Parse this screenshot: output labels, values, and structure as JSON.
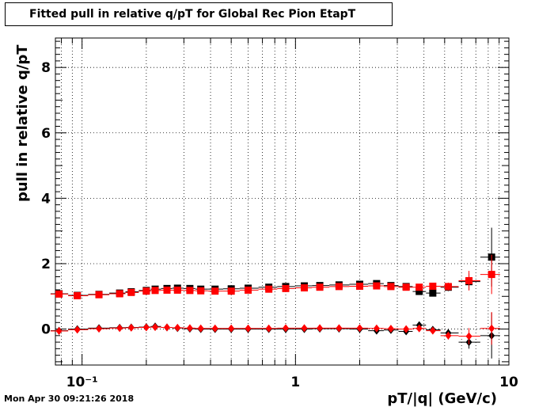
{
  "timestamp": "Mon Apr 30 09:21:26 2018",
  "chart_data": {
    "type": "scatter",
    "title": "Fitted pull in relative q/pT for Global Rec Pion EtapT",
    "xlabel": "pT/|q| (GeV/c)",
    "ylabel": "pull in relative q/pT",
    "xscale": "log",
    "xlim": [
      0.075,
      10
    ],
    "ylim": [
      -1.1,
      8.9
    ],
    "grid": true,
    "x_tick_labels": [
      "10⁻¹",
      "1",
      "10"
    ],
    "y_tick_labels": [
      "0",
      "2",
      "4",
      "6",
      "8"
    ],
    "colors": {
      "black_series": "#000000",
      "red_series": "#ff0000"
    },
    "series": [
      {
        "marker": "square",
        "color": "#000000",
        "points": [
          [
            0.078,
            1.08
          ],
          [
            0.095,
            1.03
          ],
          [
            0.12,
            1.06
          ],
          [
            0.15,
            1.1
          ],
          [
            0.17,
            1.14
          ],
          [
            0.2,
            1.18
          ],
          [
            0.22,
            1.22
          ],
          [
            0.25,
            1.24
          ],
          [
            0.28,
            1.25
          ],
          [
            0.32,
            1.24
          ],
          [
            0.36,
            1.22
          ],
          [
            0.42,
            1.22
          ],
          [
            0.5,
            1.23
          ],
          [
            0.6,
            1.25
          ],
          [
            0.75,
            1.28
          ],
          [
            0.9,
            1.3
          ],
          [
            1.1,
            1.32
          ],
          [
            1.3,
            1.33
          ],
          [
            1.6,
            1.35
          ],
          [
            2.0,
            1.37
          ],
          [
            2.4,
            1.39
          ],
          [
            2.8,
            1.33
          ],
          [
            3.3,
            1.3
          ],
          [
            3.8,
            1.15
          ],
          [
            4.4,
            1.1
          ],
          [
            5.2,
            1.28
          ],
          [
            6.5,
            1.45
          ],
          [
            8.3,
            2.2
          ]
        ],
        "errors": [
          0.02,
          0.02,
          0.02,
          0.02,
          0.02,
          0.02,
          0.02,
          0.02,
          0.02,
          0.02,
          0.02,
          0.02,
          0.02,
          0.02,
          0.02,
          0.02,
          0.02,
          0.02,
          0.02,
          0.02,
          0.03,
          0.03,
          0.05,
          0.06,
          0.08,
          0.12,
          0.25,
          0.9
        ]
      },
      {
        "marker": "diamond",
        "color": "#000000",
        "points": [
          [
            0.078,
            -0.05
          ],
          [
            0.095,
            0.0
          ],
          [
            0.12,
            0.03
          ],
          [
            0.15,
            0.04
          ],
          [
            0.17,
            0.05
          ],
          [
            0.2,
            0.06
          ],
          [
            0.22,
            0.08
          ],
          [
            0.25,
            0.05
          ],
          [
            0.28,
            0.03
          ],
          [
            0.32,
            0.01
          ],
          [
            0.36,
            0.0
          ],
          [
            0.42,
            0.0
          ],
          [
            0.5,
            0.0
          ],
          [
            0.6,
            0.0
          ],
          [
            0.75,
            0.0
          ],
          [
            0.9,
            0.0
          ],
          [
            1.1,
            0.0
          ],
          [
            1.3,
            0.01
          ],
          [
            1.6,
            0.01
          ],
          [
            2.0,
            0.0
          ],
          [
            2.4,
            -0.05
          ],
          [
            2.8,
            -0.03
          ],
          [
            3.3,
            -0.07
          ],
          [
            3.8,
            0.12
          ],
          [
            4.4,
            -0.02
          ],
          [
            5.2,
            -0.12
          ],
          [
            6.5,
            -0.4
          ],
          [
            8.3,
            -0.2
          ]
        ],
        "errors": [
          0.02,
          0.02,
          0.02,
          0.02,
          0.02,
          0.02,
          0.02,
          0.02,
          0.02,
          0.02,
          0.02,
          0.02,
          0.02,
          0.02,
          0.02,
          0.02,
          0.02,
          0.02,
          0.02,
          0.02,
          0.03,
          0.03,
          0.05,
          0.06,
          0.08,
          0.12,
          0.2,
          0.7
        ]
      },
      {
        "marker": "square",
        "color": "#ff0000",
        "points": [
          [
            0.078,
            1.07
          ],
          [
            0.095,
            1.02
          ],
          [
            0.12,
            1.05
          ],
          [
            0.15,
            1.08
          ],
          [
            0.17,
            1.12
          ],
          [
            0.2,
            1.16
          ],
          [
            0.22,
            1.18
          ],
          [
            0.25,
            1.19
          ],
          [
            0.28,
            1.19
          ],
          [
            0.32,
            1.18
          ],
          [
            0.36,
            1.17
          ],
          [
            0.42,
            1.16
          ],
          [
            0.5,
            1.16
          ],
          [
            0.6,
            1.19
          ],
          [
            0.75,
            1.22
          ],
          [
            0.9,
            1.24
          ],
          [
            1.1,
            1.26
          ],
          [
            1.3,
            1.28
          ],
          [
            1.6,
            1.3
          ],
          [
            2.0,
            1.31
          ],
          [
            2.4,
            1.32
          ],
          [
            2.8,
            1.3
          ],
          [
            3.3,
            1.28
          ],
          [
            3.8,
            1.28
          ],
          [
            4.4,
            1.31
          ],
          [
            5.2,
            1.3
          ],
          [
            6.5,
            1.48
          ],
          [
            8.3,
            1.67
          ]
        ],
        "errors": [
          0.02,
          0.02,
          0.02,
          0.02,
          0.02,
          0.02,
          0.02,
          0.02,
          0.02,
          0.02,
          0.02,
          0.02,
          0.02,
          0.02,
          0.02,
          0.02,
          0.02,
          0.02,
          0.02,
          0.02,
          0.03,
          0.03,
          0.05,
          0.06,
          0.08,
          0.12,
          0.3,
          0.6
        ]
      },
      {
        "marker": "diamond",
        "color": "#ff0000",
        "points": [
          [
            0.078,
            -0.06
          ],
          [
            0.095,
            -0.02
          ],
          [
            0.12,
            0.01
          ],
          [
            0.15,
            0.03
          ],
          [
            0.17,
            0.04
          ],
          [
            0.2,
            0.05
          ],
          [
            0.22,
            0.06
          ],
          [
            0.25,
            0.05
          ],
          [
            0.28,
            0.04
          ],
          [
            0.32,
            0.03
          ],
          [
            0.36,
            0.02
          ],
          [
            0.42,
            0.02
          ],
          [
            0.5,
            0.02
          ],
          [
            0.6,
            0.02
          ],
          [
            0.75,
            0.02
          ],
          [
            0.9,
            0.03
          ],
          [
            1.1,
            0.03
          ],
          [
            1.3,
            0.03
          ],
          [
            1.6,
            0.03
          ],
          [
            2.0,
            0.03
          ],
          [
            2.4,
            0.02
          ],
          [
            2.8,
            0.01
          ],
          [
            3.3,
            0.0
          ],
          [
            3.8,
            0.02
          ],
          [
            4.4,
            -0.05
          ],
          [
            5.2,
            -0.2
          ],
          [
            6.5,
            -0.22
          ],
          [
            8.3,
            0.02
          ]
        ],
        "errors": [
          0.02,
          0.02,
          0.02,
          0.02,
          0.02,
          0.02,
          0.02,
          0.02,
          0.02,
          0.02,
          0.02,
          0.02,
          0.02,
          0.02,
          0.02,
          0.02,
          0.02,
          0.02,
          0.02,
          0.02,
          0.03,
          0.03,
          0.05,
          0.06,
          0.08,
          0.12,
          0.25,
          0.5
        ]
      }
    ]
  }
}
